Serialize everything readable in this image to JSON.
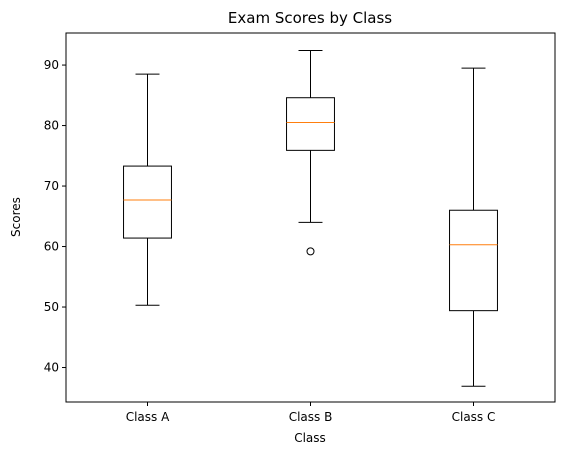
{
  "chart_data": {
    "type": "box",
    "title": "Exam Scores by Class",
    "xlabel": "Class",
    "ylabel": "Scores",
    "ylim": [
      34.3,
      95.3
    ],
    "yticks": [
      40,
      50,
      60,
      70,
      80,
      90
    ],
    "categories": [
      "Class A",
      "Class B",
      "Class C"
    ],
    "boxes": [
      {
        "name": "Class A",
        "whisker_low": 50.3,
        "q1": 61.4,
        "median": 67.7,
        "q3": 73.3,
        "whisker_high": 88.5,
        "outliers": []
      },
      {
        "name": "Class B",
        "whisker_low": 64.0,
        "q1": 75.9,
        "median": 80.5,
        "q3": 84.6,
        "whisker_high": 92.4,
        "outliers": [
          59.2
        ]
      },
      {
        "name": "Class C",
        "whisker_low": 36.9,
        "q1": 49.4,
        "median": 60.3,
        "q3": 66.0,
        "whisker_high": 89.5,
        "outliers": []
      }
    ],
    "grid": false,
    "colors": {
      "box": "#000000",
      "median": "#ff7f0e"
    }
  }
}
